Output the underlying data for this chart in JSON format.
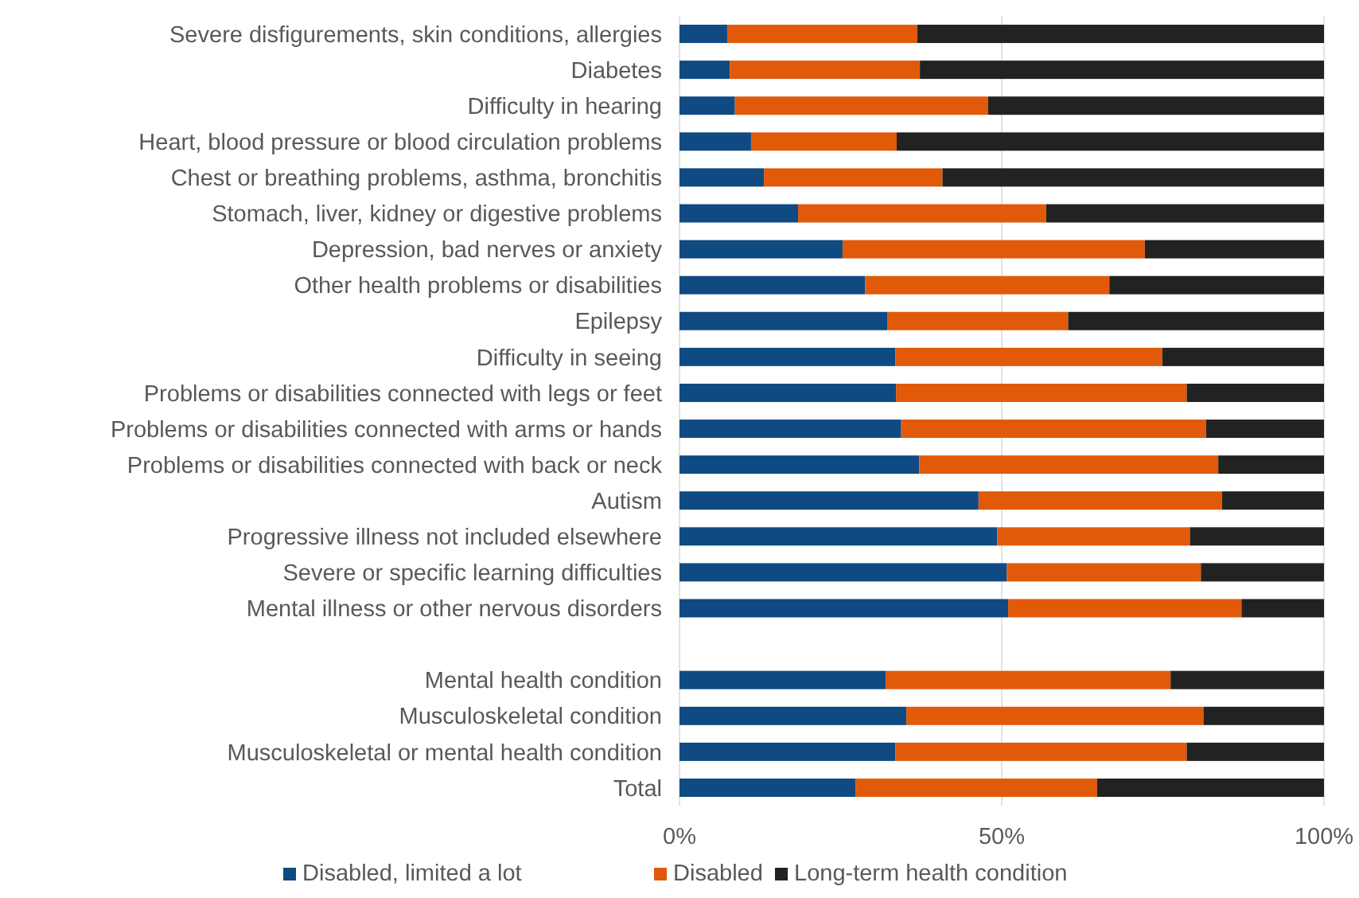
{
  "chart_data": {
    "type": "bar",
    "orientation": "horizontal",
    "stacked": true,
    "categories": [
      "Severe disfigurements, skin conditions, allergies",
      "Diabetes",
      "Difficulty in hearing",
      "Heart, blood pressure or blood circulation problems",
      "Chest or breathing problems, asthma, bronchitis",
      "Stomach, liver, kidney or digestive problems",
      "Depression, bad nerves or anxiety",
      "Other health problems or disabilities",
      "Epilepsy",
      "Difficulty in seeing",
      "Problems or disabilities connected with legs or feet",
      "Problems or disabilities connected with arms or hands",
      "Problems or disabilities connected with back or neck",
      "Autism",
      "Progressive illness not included elsewhere",
      "Severe or specific learning difficulties",
      "Mental illness or other nervous disorders",
      null,
      "Mental health condition",
      "Musculoskeletal condition",
      "Musculoskeletal or mental health condition",
      "Total"
    ],
    "series": [
      {
        "name": "Disabled, limited a lot",
        "color": "#0f4a82",
        "values": [
          7.4,
          7.8,
          8.6,
          11.1,
          13.1,
          18.4,
          25.3,
          28.8,
          32.3,
          33.5,
          33.6,
          34.4,
          37.2,
          46.4,
          49.3,
          50.8,
          51.0,
          null,
          32.0,
          35.2,
          33.5,
          27.3
        ]
      },
      {
        "name": "Disabled",
        "color": "#e05a0a",
        "values": [
          29.5,
          29.5,
          39.3,
          22.6,
          27.7,
          38.5,
          46.9,
          37.9,
          28.0,
          41.4,
          45.1,
          47.3,
          46.4,
          37.8,
          29.9,
          30.1,
          36.2,
          null,
          44.2,
          46.1,
          45.2,
          37.5
        ]
      },
      {
        "name": "Long-term health condition",
        "color": "#222222",
        "values": [
          63.1,
          62.7,
          52.1,
          66.3,
          59.2,
          43.1,
          27.8,
          33.3,
          39.7,
          25.1,
          21.3,
          18.3,
          16.4,
          15.8,
          20.8,
          19.1,
          12.8,
          null,
          23.8,
          18.7,
          21.3,
          35.2
        ]
      }
    ],
    "xlim": [
      0,
      100
    ],
    "xticks": [
      {
        "value": 0,
        "label": "0%"
      },
      {
        "value": 50,
        "label": "50%"
      },
      {
        "value": 100,
        "label": "100%"
      }
    ],
    "grid": "x",
    "legend": "bottom"
  }
}
